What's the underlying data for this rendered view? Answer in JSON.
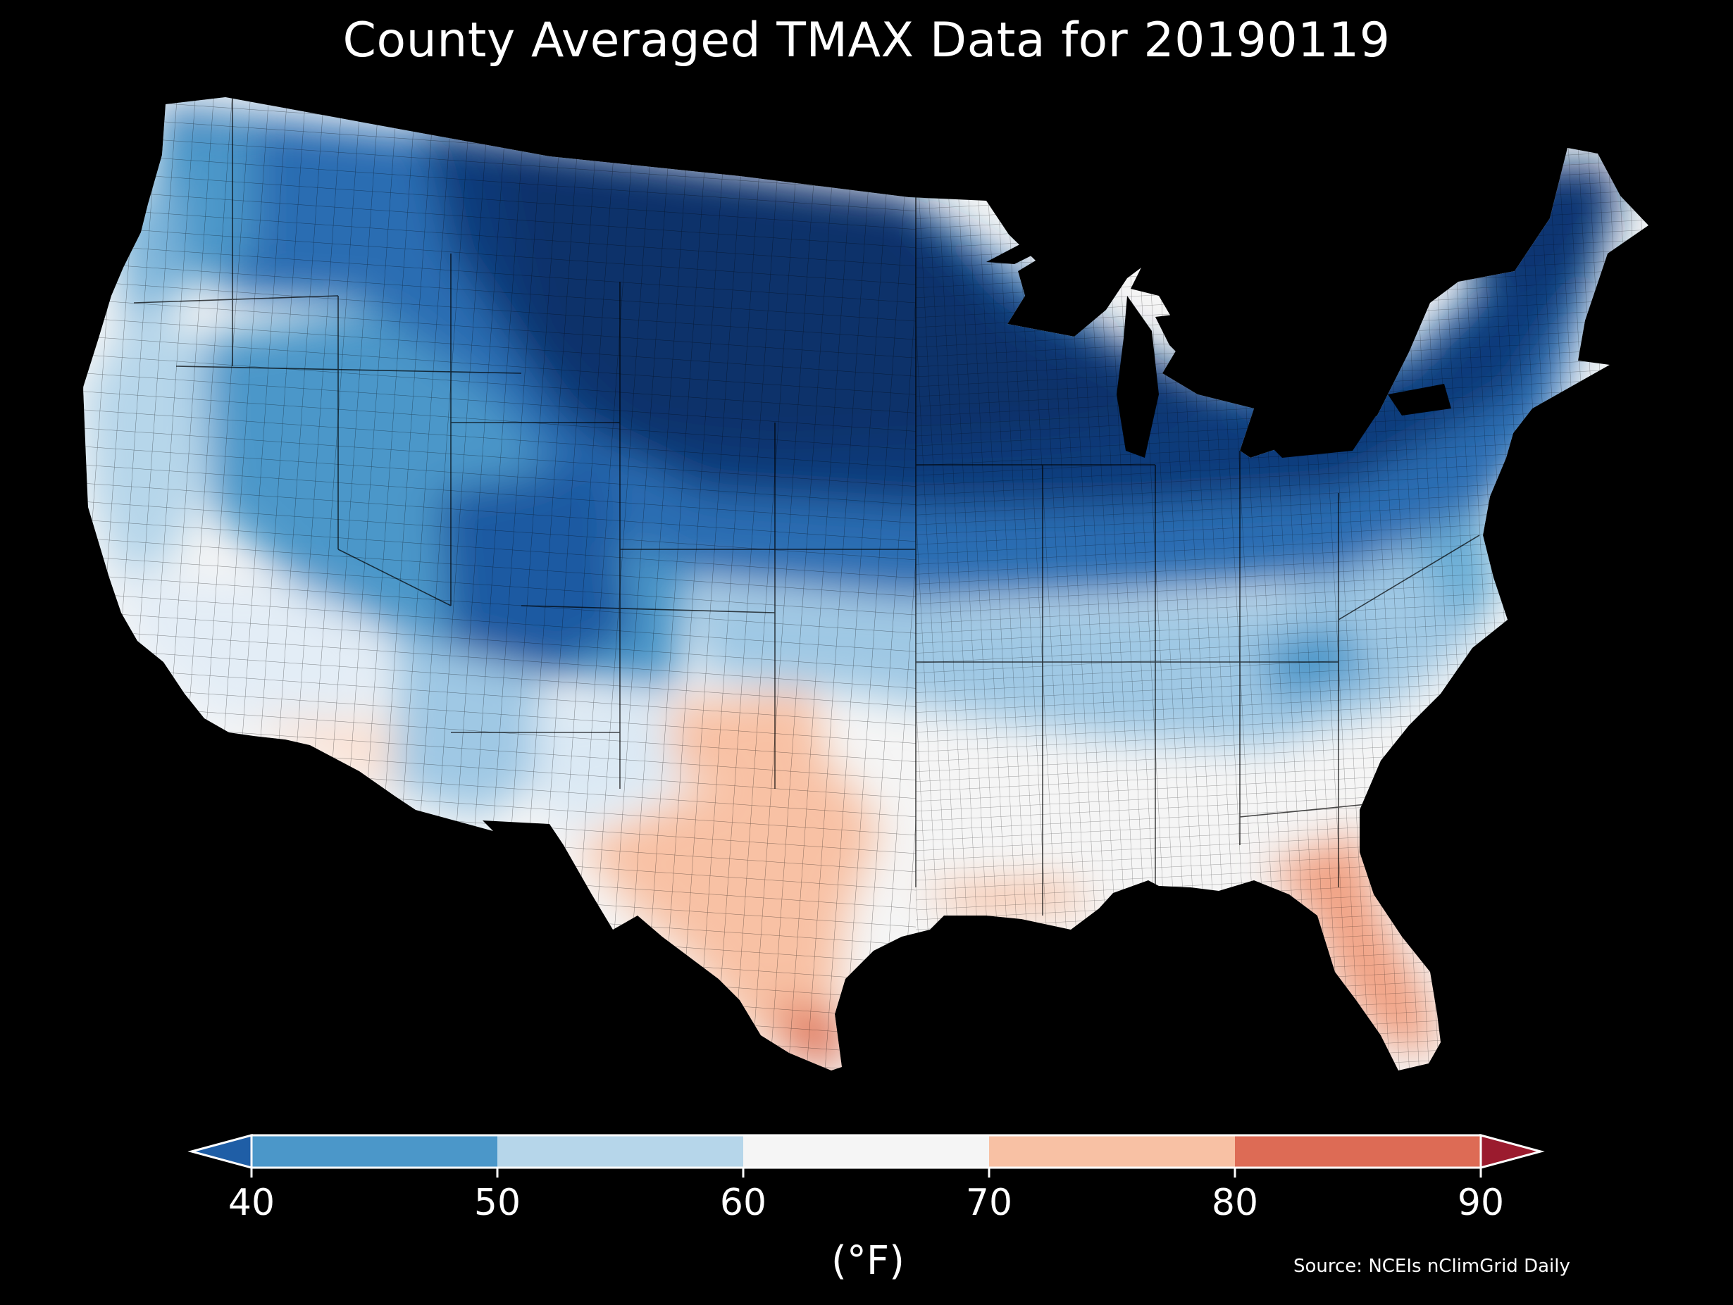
{
  "title": "County Averaged TMAX Data for 20190119",
  "colorbar": {
    "ticks": [
      "40",
      "50",
      "60",
      "70",
      "80",
      "90"
    ],
    "units": "(°F)",
    "bins": [
      {
        "range": "below 40",
        "color": "#1f5ea6"
      },
      {
        "range": "40-50",
        "color": "#4b97c9"
      },
      {
        "range": "50-60",
        "color": "#b6d6ea"
      },
      {
        "range": "60-70",
        "color": "#f5f5f5"
      },
      {
        "range": "70-80",
        "color": "#f8c1a4"
      },
      {
        "range": "80-90",
        "color": "#dd6b55"
      },
      {
        "range": "above 90",
        "color": "#9b1b2e"
      }
    ]
  },
  "source": "Source: NCEIs nClimGrid Daily",
  "map_colors": {
    "coldest": "#08306b",
    "cold": "#1f5ea6",
    "cool": "#4b97c9",
    "mild": "#b6d6ea",
    "neutral": "#f5f5f5",
    "warm": "#f8c1a4",
    "hot": "#e07a5f"
  }
}
